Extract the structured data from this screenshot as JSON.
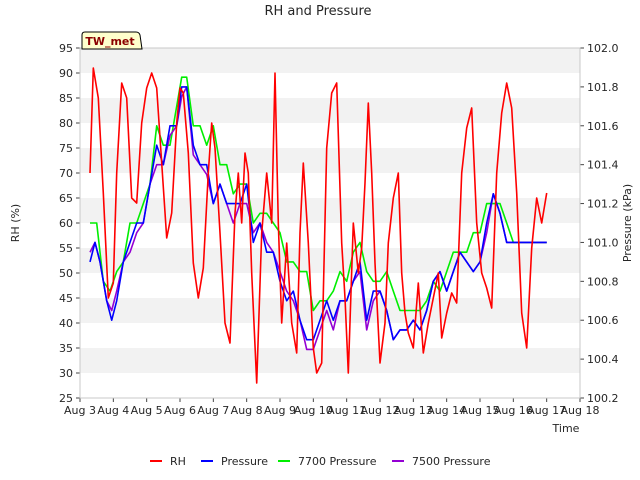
{
  "chart_data": {
    "type": "line",
    "title": "RH and Pressure",
    "site_label": "TW_met",
    "xlabel": "Time",
    "ylabel_left": "RH (%)",
    "ylabel_right": "Pressure (kPa)",
    "xlim": [
      3,
      18
    ],
    "ylim_left": [
      25,
      95
    ],
    "ylim_right": [
      100.2,
      102.0
    ],
    "grid": true,
    "legend_location": "bottom-center",
    "x_tick_values": [
      3,
      4,
      5,
      6,
      7,
      8,
      9,
      10,
      11,
      12,
      13,
      14,
      15,
      16,
      17,
      18
    ],
    "x_tick_labels": [
      "Aug 3",
      "Aug 4",
      "Aug 5",
      "Aug 6",
      "Aug 7",
      "Aug 8",
      "Aug 9",
      "Aug 10",
      "Aug 11",
      "Aug 12",
      "Aug 13",
      "Aug 14",
      "Aug 15",
      "Aug 16",
      "Aug 17",
      "Aug 18"
    ],
    "y_left_ticks": [
      25,
      30,
      35,
      40,
      45,
      50,
      55,
      60,
      65,
      70,
      75,
      80,
      85,
      90,
      95
    ],
    "y_right_ticks": [
      100.2,
      100.4,
      100.6,
      100.8,
      101.0,
      101.2,
      101.4,
      101.6,
      101.8,
      102.0
    ],
    "y_right_tick_labels": [
      "100.2",
      "100.4",
      "100.6",
      "100.8",
      "101.0",
      "101.2",
      "101.4",
      "101.6",
      "101.8",
      "102.0"
    ],
    "series": [
      {
        "name": "RH",
        "axis": "left",
        "color": "#ff0000",
        "x": [
          3.3,
          3.4,
          3.55,
          3.7,
          3.85,
          4.0,
          4.1,
          4.25,
          4.4,
          4.55,
          4.7,
          4.85,
          5.0,
          5.15,
          5.3,
          5.45,
          5.6,
          5.75,
          5.9,
          6.0,
          6.1,
          6.25,
          6.4,
          6.55,
          6.7,
          6.85,
          6.95,
          7.05,
          7.2,
          7.35,
          7.5,
          7.65,
          7.75,
          7.85,
          7.95,
          8.05,
          8.15,
          8.3,
          8.45,
          8.6,
          8.75,
          8.85,
          8.95,
          9.05,
          9.2,
          9.35,
          9.5,
          9.6,
          9.7,
          9.85,
          10.0,
          10.1,
          10.25,
          10.4,
          10.55,
          10.7,
          10.85,
          10.95,
          11.05,
          11.2,
          11.35,
          11.45,
          11.55,
          11.65,
          11.75,
          11.85,
          12.0,
          12.15,
          12.25,
          12.4,
          12.55,
          12.65,
          12.75,
          12.85,
          13.0,
          13.15,
          13.3,
          13.45,
          13.6,
          13.75,
          13.85,
          14.0,
          14.15,
          14.3,
          14.45,
          14.6,
          14.75,
          14.9,
          15.05,
          15.2,
          15.35,
          15.5,
          15.65,
          15.8,
          15.95,
          16.1,
          16.25,
          16.4,
          16.55,
          16.7,
          16.85,
          17.0
        ],
        "values": [
          70,
          91,
          85,
          66,
          45,
          48,
          70,
          88,
          85,
          65,
          64,
          80,
          87,
          90,
          87,
          72,
          57,
          62,
          80,
          87,
          86,
          74,
          52,
          45,
          51,
          70,
          80,
          75,
          58,
          40,
          36,
          62,
          70,
          60,
          74,
          70,
          50,
          28,
          58,
          70,
          60,
          90,
          60,
          40,
          56,
          40,
          34,
          58,
          72,
          56,
          35,
          30,
          32,
          75,
          86,
          88,
          56,
          45,
          30,
          60,
          50,
          55,
          68,
          84,
          70,
          52,
          32,
          40,
          56,
          65,
          70,
          50,
          42,
          38,
          35,
          48,
          34,
          40,
          45,
          50,
          37,
          42,
          46,
          44,
          70,
          79,
          83,
          60,
          50,
          47,
          43,
          70,
          82,
          88,
          83,
          66,
          42,
          35,
          55,
          65,
          60,
          66
        ]
      },
      {
        "name": "Pressure",
        "axis": "right",
        "color": "#0000ff",
        "x": [
          3.3,
          3.45,
          3.6,
          3.8,
          3.95,
          4.1,
          4.3,
          4.5,
          4.7,
          4.9,
          5.1,
          5.3,
          5.5,
          5.7,
          5.9,
          6.05,
          6.2,
          6.4,
          6.6,
          6.8,
          7.0,
          7.2,
          7.4,
          7.6,
          7.8,
          8.0,
          8.2,
          8.4,
          8.6,
          8.8,
          9.0,
          9.2,
          9.4,
          9.6,
          9.8,
          10.0,
          10.2,
          10.4,
          10.6,
          10.8,
          11.0,
          11.2,
          11.4,
          11.6,
          11.8,
          12.0,
          12.2,
          12.4,
          12.6,
          12.8,
          13.0,
          13.2,
          13.4,
          13.6,
          13.8,
          14.0,
          14.2,
          14.4,
          14.6,
          14.8,
          15.0,
          15.2,
          15.4,
          15.6,
          15.8,
          16.0,
          16.2,
          16.4,
          16.6,
          16.8,
          17.0
        ],
        "values": [
          100.9,
          101.0,
          100.9,
          100.7,
          100.6,
          100.7,
          100.9,
          101.0,
          101.1,
          101.1,
          101.3,
          101.5,
          101.4,
          101.6,
          101.6,
          101.8,
          101.8,
          101.5,
          101.4,
          101.4,
          101.2,
          101.3,
          101.2,
          101.2,
          101.2,
          101.3,
          101.0,
          101.1,
          100.95,
          100.95,
          100.8,
          100.7,
          100.75,
          100.6,
          100.5,
          100.5,
          100.6,
          100.7,
          100.6,
          100.7,
          100.7,
          100.8,
          100.9,
          100.6,
          100.75,
          100.75,
          100.65,
          100.5,
          100.55,
          100.55,
          100.6,
          100.55,
          100.65,
          100.8,
          100.85,
          100.75,
          100.85,
          100.95,
          100.9,
          100.85,
          100.9,
          101.1,
          101.25,
          101.15,
          101.0,
          101.0,
          101.0,
          101.0,
          101.0,
          101.0,
          101.0
        ]
      },
      {
        "name": "7700 Pressure",
        "axis": "right",
        "color": "#00ee00",
        "x": [
          3.3,
          3.5,
          3.7,
          3.9,
          4.1,
          4.3,
          4.5,
          4.7,
          4.9,
          5.1,
          5.3,
          5.5,
          5.7,
          5.9,
          6.05,
          6.2,
          6.4,
          6.6,
          6.8,
          7.0,
          7.2,
          7.4,
          7.6,
          7.8,
          8.0,
          8.2,
          8.4,
          8.6,
          8.8,
          9.0,
          9.2,
          9.4,
          9.6,
          9.8,
          10.0,
          10.2,
          10.4,
          10.6,
          10.8,
          11.0,
          11.2,
          11.4,
          11.6,
          11.8,
          12.0,
          12.2,
          12.4,
          12.6,
          12.8,
          13.0,
          13.2,
          13.4,
          13.6,
          13.8,
          14.0,
          14.2,
          14.4,
          14.6,
          14.8,
          15.0,
          15.2,
          15.4,
          15.6,
          15.8,
          16.0,
          16.2,
          16.4,
          16.6,
          16.8,
          17.0
        ],
        "values": [
          101.1,
          101.1,
          100.8,
          100.75,
          100.85,
          100.9,
          101.1,
          101.1,
          101.2,
          101.3,
          101.6,
          101.5,
          101.5,
          101.7,
          101.85,
          101.85,
          101.6,
          101.6,
          101.5,
          101.6,
          101.4,
          101.4,
          101.25,
          101.3,
          101.3,
          101.1,
          101.15,
          101.15,
          101.1,
          101.05,
          100.9,
          100.9,
          100.85,
          100.85,
          100.65,
          100.7,
          100.7,
          100.75,
          100.85,
          100.8,
          100.95,
          101.0,
          100.85,
          100.8,
          100.8,
          100.85,
          100.75,
          100.65,
          100.65,
          100.65,
          100.65,
          100.7,
          100.8,
          100.75,
          100.85,
          100.95,
          100.95,
          100.95,
          101.05,
          101.05,
          101.2,
          101.2,
          101.2,
          101.1,
          101.0,
          101.0,
          101.0,
          101.0,
          101.0,
          101.0
        ]
      },
      {
        "name": "7500 Pressure",
        "axis": "right",
        "color": "#9400d3",
        "x": [
          3.3,
          3.45,
          3.6,
          3.8,
          3.95,
          4.1,
          4.3,
          4.5,
          4.7,
          4.9,
          5.1,
          5.3,
          5.5,
          5.7,
          5.9,
          6.05,
          6.2,
          6.4,
          6.6,
          6.8,
          7.0,
          7.2,
          7.4,
          7.6,
          7.8,
          8.0,
          8.2,
          8.4,
          8.6,
          8.8,
          9.0,
          9.2,
          9.4,
          9.6,
          9.8,
          10.0,
          10.2,
          10.4,
          10.6,
          10.8,
          11.0,
          11.2,
          11.4,
          11.6,
          11.8,
          12.0,
          12.2,
          12.4,
          12.6,
          12.8,
          13.0,
          13.2,
          13.4,
          13.6,
          13.8,
          14.0,
          14.2,
          14.4,
          14.6,
          14.8,
          15.0,
          15.2,
          15.4,
          15.6,
          15.8,
          16.0,
          16.2,
          16.4,
          16.6,
          16.8,
          17.0
        ],
        "values": [
          100.95,
          101.0,
          100.9,
          100.7,
          100.65,
          100.75,
          100.9,
          100.95,
          101.05,
          101.1,
          101.3,
          101.4,
          101.4,
          101.55,
          101.6,
          101.75,
          101.8,
          101.45,
          101.4,
          101.35,
          101.2,
          101.3,
          101.2,
          101.1,
          101.2,
          101.2,
          101.05,
          101.1,
          101.0,
          100.95,
          100.85,
          100.75,
          100.7,
          100.6,
          100.45,
          100.45,
          100.55,
          100.65,
          100.55,
          100.7,
          100.7,
          100.8,
          100.85,
          100.55,
          100.7,
          100.75,
          100.65,
          100.5,
          100.55,
          100.55,
          100.6,
          100.55,
          100.65,
          100.8,
          100.85,
          100.75,
          100.85,
          100.95,
          100.9,
          100.85,
          100.9,
          101.05,
          101.25,
          101.15,
          101.0,
          101.0,
          101.0,
          101.0,
          101.0,
          101.0,
          101.0
        ]
      }
    ]
  }
}
